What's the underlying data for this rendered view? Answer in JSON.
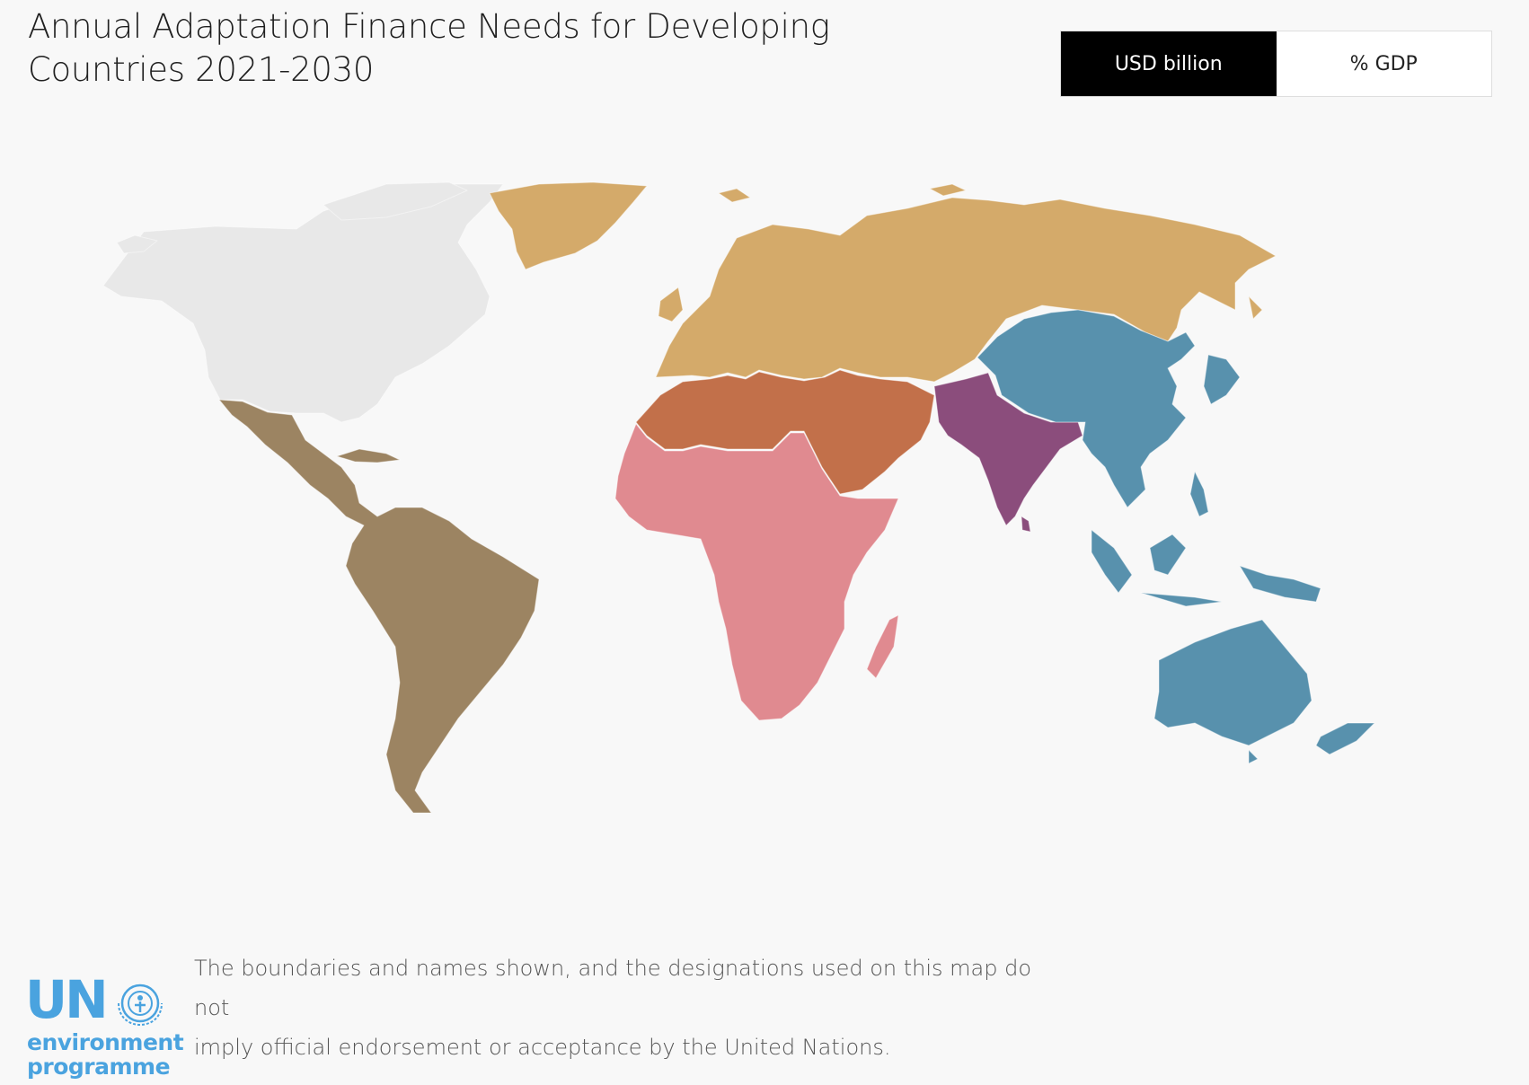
{
  "header": {
    "title_line1": "Annual Adaptation Finance Needs for Developing",
    "title_line2": "Countries 2021-2030"
  },
  "unit_toggle": {
    "options": [
      {
        "label": "USD billion",
        "active": true
      },
      {
        "label": "% GDP",
        "active": false
      }
    ]
  },
  "map": {
    "regions": [
      {
        "id": "north-america",
        "color": "#e8e8e8"
      },
      {
        "id": "europe-central-asia",
        "color": "#d4aa6a"
      },
      {
        "id": "latin-america-caribbean",
        "color": "#9c8462"
      },
      {
        "id": "middle-east-north-africa",
        "color": "#c2704a"
      },
      {
        "id": "sub-saharan-africa",
        "color": "#e08a90"
      },
      {
        "id": "south-asia",
        "color": "#8b4d7c"
      },
      {
        "id": "east-asia-pacific",
        "color": "#5891ad"
      }
    ]
  },
  "footer": {
    "disclaimer_line1": "The boundaries and names shown, and the designations used on this map do not",
    "disclaimer_line2": "imply official endorsement or acceptance by the United Nations."
  },
  "logo": {
    "text_un": "UN",
    "text_line1": "environment",
    "text_line2": "programme",
    "color": "#4aa3df"
  }
}
